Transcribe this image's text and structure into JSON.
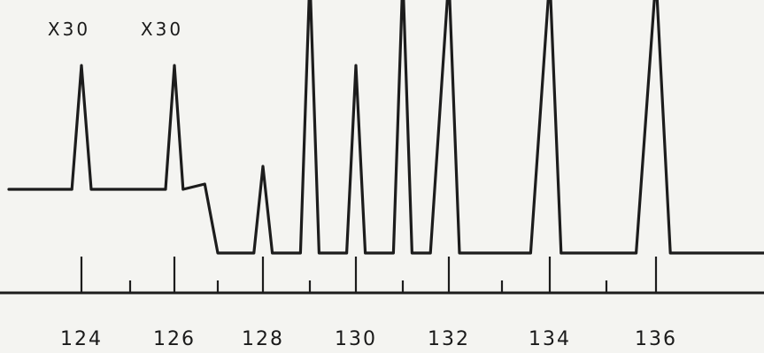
{
  "chart_data": {
    "type": "line",
    "title": "",
    "xlabel": "",
    "ylabel": "",
    "xlim": [
      123,
      137
    ],
    "x_tick_labels": [
      "124",
      "126",
      "128",
      "130",
      "132",
      "134",
      "136"
    ],
    "x_ticks_major": [
      124,
      126,
      128,
      130,
      132,
      134,
      136
    ],
    "x_ticks_minor": [
      125,
      127,
      129,
      131,
      133,
      135
    ],
    "annotations": [
      {
        "text": "X30",
        "x": 124
      },
      {
        "text": "X30",
        "x": 126
      }
    ],
    "series": [
      {
        "values": [
          {
            "x": 123.0,
            "y": 0.0
          },
          {
            "x": 123.8,
            "y": 0.0
          },
          {
            "x": 124.0,
            "y": 0.7
          },
          {
            "x": 124.2,
            "y": 0.0
          },
          {
            "x": 125.8,
            "y": 0.0
          },
          {
            "x": 126.0,
            "y": 0.7
          },
          {
            "x": 126.2,
            "y": 0.0
          },
          {
            "x": 126.7,
            "y": 0.03
          },
          {
            "x": 127.0,
            "y": -0.36
          },
          {
            "x": 127.8,
            "y": -0.36
          },
          {
            "x": 128.0,
            "y": 0.13
          },
          {
            "x": 128.2,
            "y": -0.36
          },
          {
            "x": 128.8,
            "y": -0.36
          },
          {
            "x": 129.0,
            "y": 1.2
          },
          {
            "x": 129.2,
            "y": -0.36
          },
          {
            "x": 129.8,
            "y": -0.36
          },
          {
            "x": 130.0,
            "y": 0.7
          },
          {
            "x": 130.2,
            "y": -0.36
          },
          {
            "x": 130.8,
            "y": -0.36
          },
          {
            "x": 131.0,
            "y": 1.2
          },
          {
            "x": 131.2,
            "y": -0.36
          },
          {
            "x": 131.6,
            "y": -0.36
          },
          {
            "x": 132.0,
            "y": 1.2
          },
          {
            "x": 132.2,
            "y": -0.36
          },
          {
            "x": 133.6,
            "y": -0.36
          },
          {
            "x": 134.0,
            "y": 1.2
          },
          {
            "x": 134.2,
            "y": -0.36
          },
          {
            "x": 135.6,
            "y": -0.36
          },
          {
            "x": 136.0,
            "y": 1.2
          },
          {
            "x": 136.3,
            "y": -0.36
          },
          {
            "x": 137.0,
            "y": -0.36
          }
        ]
      }
    ]
  }
}
